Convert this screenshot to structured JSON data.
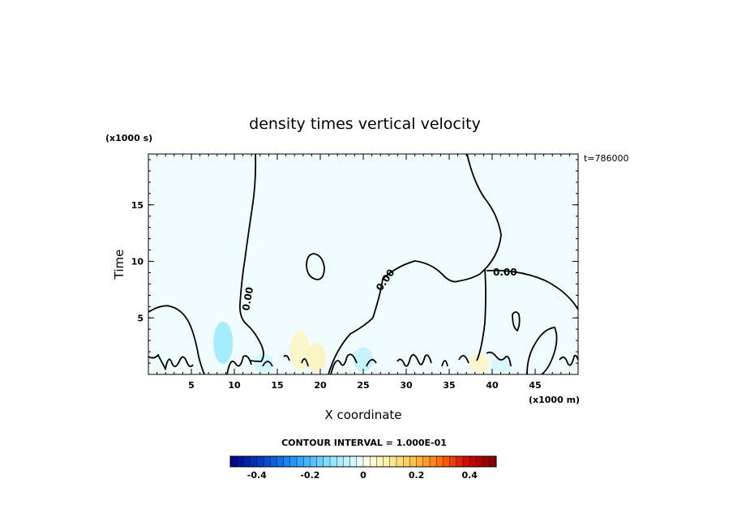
{
  "chart_data": {
    "type": "heatmap",
    "title": "density times vertical velocity",
    "xlabel": "X coordinate",
    "ylabel": "Time",
    "x_unit": "(x1000 m)",
    "y_unit": "(x1000 s)",
    "time_label": "t=786000",
    "contour_interval_text": "CONTOUR INTERVAL = 1.000E-01",
    "xlim": [
      0,
      50
    ],
    "ylim": [
      0,
      19.5
    ],
    "x_ticks": [
      5,
      10,
      15,
      20,
      25,
      30,
      35,
      40,
      45
    ],
    "y_ticks": [
      5,
      10,
      15
    ],
    "contour_labels": [
      "0.00",
      "0.00",
      "0.00"
    ],
    "colorbar": {
      "range": [
        -0.5,
        0.5
      ],
      "tick_values": [
        -0.4,
        -0.2,
        0,
        0.2,
        0.4
      ],
      "tick_labels": [
        "-0.4",
        "-0.2",
        "0",
        "0.2",
        "0.4"
      ],
      "colors_low": [
        "#000080",
        "#0044cc",
        "#2aa0ff",
        "#8ae6ff",
        "#f0ffff"
      ],
      "colors_high": [
        "#fffff0",
        "#ffee99",
        "#ffbb44",
        "#ff6600",
        "#cc0000",
        "#800000"
      ]
    },
    "field_background": "#f0fcff",
    "anomalies": [
      {
        "x": 8.7,
        "y": 2.8,
        "value": -0.12
      },
      {
        "x": 13.4,
        "y": 1.0,
        "value": -0.05
      },
      {
        "x": 17.6,
        "y": 2.1,
        "value": 0.06
      },
      {
        "x": 19.5,
        "y": 1.5,
        "value": 0.07
      },
      {
        "x": 25.0,
        "y": 1.3,
        "value": -0.07
      },
      {
        "x": 38.5,
        "y": 1.0,
        "value": 0.06
      },
      {
        "x": 41.0,
        "y": 0.8,
        "value": -0.04
      }
    ]
  }
}
